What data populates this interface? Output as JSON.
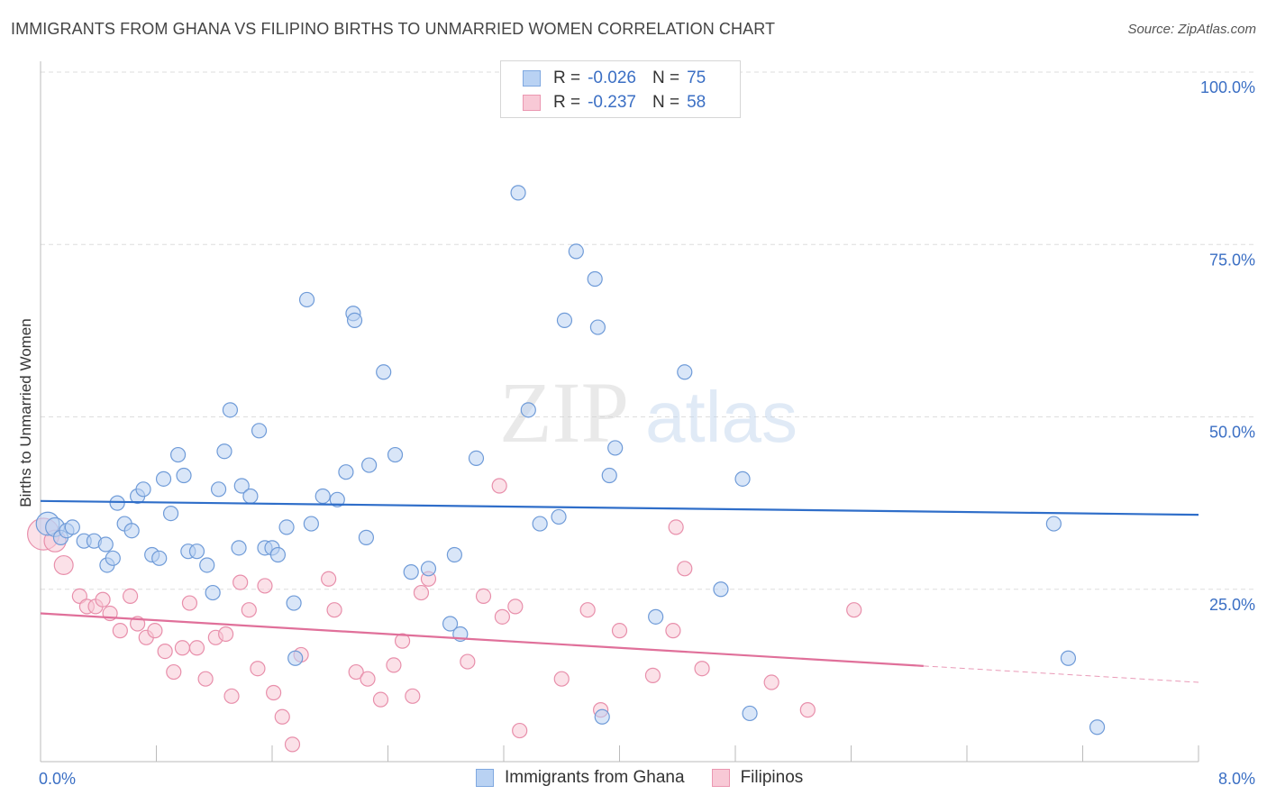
{
  "title": "IMMIGRANTS FROM GHANA VS FILIPINO BIRTHS TO UNMARRIED WOMEN CORRELATION CHART",
  "source": "Source: ZipAtlas.com",
  "watermark": {
    "zip": "ZIP",
    "atlas": "atlas"
  },
  "legend": {
    "r_label": "R =",
    "n_label": "N =",
    "rows": [
      {
        "r": "-0.026",
        "n": "75",
        "fill": "#b9d2f3",
        "stroke": "#7fa8e0"
      },
      {
        "r": "-0.237",
        "n": "58",
        "fill": "#f8c9d6",
        "stroke": "#eb97b1"
      }
    ]
  },
  "bottom_legend": [
    {
      "label": "Immigrants from Ghana",
      "fill": "#b9d2f3",
      "stroke": "#7fa8e0"
    },
    {
      "label": "Filipinos",
      "fill": "#f8c9d6",
      "stroke": "#eb97b1"
    }
  ],
  "colors": {
    "blue_fill": "#b9d2f3",
    "blue_stroke": "#6f9bd8",
    "blue_line": "#2f6ec9",
    "pink_fill": "#f8c9d6",
    "pink_stroke": "#e88fab",
    "pink_line": "#e0709a",
    "tick_label": "#3b6fc4",
    "grid": "#dddddd"
  },
  "chart_data": {
    "type": "scatter",
    "title": "IMMIGRANTS FROM GHANA VS FILIPINO BIRTHS TO UNMARRIED WOMEN CORRELATION CHART",
    "xlabel": "",
    "ylabel": "Births to Unmarried Women",
    "xlim": [
      0,
      8
    ],
    "ylim": [
      0,
      100
    ],
    "x_tick_labels": [
      {
        "value": 0,
        "label": "0.0%"
      },
      {
        "value": 8,
        "label": "8.0%"
      }
    ],
    "y_tick_labels": [
      {
        "value": 25,
        "label": "25.0%"
      },
      {
        "value": 50,
        "label": "50.0%"
      },
      {
        "value": 75,
        "label": "75.0%"
      },
      {
        "value": 100,
        "label": "100.0%"
      }
    ],
    "series": [
      {
        "name": "Immigrants from Ghana",
        "r": -0.026,
        "n": 75,
        "trend": {
          "x0": 0,
          "y0": 37.8,
          "x1": 8,
          "y1": 35.8,
          "solid_until": 8
        },
        "points": [
          [
            0.05,
            34.5,
            1.6
          ],
          [
            0.1,
            34.0,
            1.3
          ],
          [
            0.14,
            32.5,
            1.0
          ],
          [
            0.18,
            33.5,
            1.0
          ],
          [
            0.22,
            34.0,
            1.0
          ],
          [
            0.3,
            32.0,
            1.0
          ],
          [
            0.37,
            32.0,
            1.0
          ],
          [
            0.45,
            31.5,
            1.0
          ],
          [
            0.46,
            28.5,
            1.0
          ],
          [
            0.5,
            29.5,
            1.0
          ],
          [
            0.53,
            37.5,
            1.0
          ],
          [
            0.58,
            34.5,
            1.0
          ],
          [
            0.63,
            33.5,
            1.0
          ],
          [
            0.67,
            38.5,
            1.0
          ],
          [
            0.71,
            39.5,
            1.0
          ],
          [
            0.77,
            30.0,
            1.0
          ],
          [
            0.82,
            29.5,
            1.0
          ],
          [
            0.85,
            41.0,
            1.0
          ],
          [
            0.9,
            36.0,
            1.0
          ],
          [
            0.95,
            44.5,
            1.0
          ],
          [
            0.99,
            41.5,
            1.0
          ],
          [
            1.02,
            30.5,
            1.0
          ],
          [
            1.08,
            30.5,
            1.0
          ],
          [
            1.15,
            28.5,
            1.0
          ],
          [
            1.19,
            24.5,
            1.0
          ],
          [
            1.23,
            39.5,
            1.0
          ],
          [
            1.27,
            45.0,
            1.0
          ],
          [
            1.31,
            51.0,
            1.0
          ],
          [
            1.37,
            31.0,
            1.0
          ],
          [
            1.39,
            40.0,
            1.0
          ],
          [
            1.45,
            38.5,
            1.0
          ],
          [
            1.51,
            48.0,
            1.0
          ],
          [
            1.55,
            31.0,
            1.0
          ],
          [
            1.6,
            31.0,
            1.0
          ],
          [
            1.64,
            30.0,
            1.0
          ],
          [
            1.7,
            34.0,
            1.0
          ],
          [
            1.75,
            23.0,
            1.0
          ],
          [
            1.76,
            15.0,
            1.0
          ],
          [
            1.84,
            67.0,
            1.0
          ],
          [
            1.87,
            34.5,
            1.0
          ],
          [
            1.95,
            38.5,
            1.0
          ],
          [
            2.05,
            38.0,
            1.0
          ],
          [
            2.11,
            42.0,
            1.0
          ],
          [
            2.16,
            65.0,
            1.0
          ],
          [
            2.17,
            64.0,
            1.0
          ],
          [
            2.25,
            32.5,
            1.0
          ],
          [
            2.27,
            43.0,
            1.0
          ],
          [
            2.37,
            56.5,
            1.0
          ],
          [
            2.45,
            44.5,
            1.0
          ],
          [
            2.56,
            27.5,
            1.0
          ],
          [
            2.68,
            28.0,
            1.0
          ],
          [
            2.83,
            20.0,
            1.0
          ],
          [
            2.86,
            30.0,
            1.0
          ],
          [
            2.9,
            18.5,
            1.0
          ],
          [
            3.01,
            44.0,
            1.0
          ],
          [
            3.3,
            82.5,
            1.0
          ],
          [
            3.37,
            51.0,
            1.0
          ],
          [
            3.45,
            34.5,
            1.0
          ],
          [
            3.58,
            35.5,
            1.0
          ],
          [
            3.62,
            64.0,
            1.0
          ],
          [
            3.7,
            74.0,
            1.0
          ],
          [
            3.83,
            70.0,
            1.0
          ],
          [
            3.85,
            63.0,
            1.0
          ],
          [
            3.88,
            6.5,
            1.0
          ],
          [
            3.93,
            41.5,
            1.0
          ],
          [
            3.97,
            45.5,
            1.0
          ],
          [
            4.25,
            21.0,
            1.0
          ],
          [
            4.45,
            56.5,
            1.0
          ],
          [
            4.7,
            25.0,
            1.0
          ],
          [
            4.85,
            41.0,
            1.0
          ],
          [
            4.9,
            7.0,
            1.0
          ],
          [
            7.0,
            34.5,
            1.0
          ],
          [
            7.1,
            15.0,
            1.0
          ],
          [
            7.3,
            5.0,
            1.0
          ]
        ]
      },
      {
        "name": "Filipinos",
        "r": -0.237,
        "n": 58,
        "trend": {
          "x0": 0,
          "y0": 21.5,
          "x1": 8,
          "y1": 11.5,
          "solid_until": 6.1
        },
        "points": [
          [
            0.02,
            33.0,
            2.2
          ],
          [
            0.1,
            32.0,
            1.5
          ],
          [
            0.16,
            28.5,
            1.3
          ],
          [
            0.27,
            24.0,
            1.0
          ],
          [
            0.32,
            22.5,
            1.0
          ],
          [
            0.38,
            22.5,
            1.0
          ],
          [
            0.43,
            23.5,
            1.0
          ],
          [
            0.48,
            21.5,
            1.0
          ],
          [
            0.55,
            19.0,
            1.0
          ],
          [
            0.62,
            24.0,
            1.0
          ],
          [
            0.67,
            20.0,
            1.0
          ],
          [
            0.73,
            18.0,
            1.0
          ],
          [
            0.79,
            19.0,
            1.0
          ],
          [
            0.86,
            16.0,
            1.0
          ],
          [
            0.92,
            13.0,
            1.0
          ],
          [
            0.98,
            16.5,
            1.0
          ],
          [
            1.03,
            23.0,
            1.0
          ],
          [
            1.08,
            16.5,
            1.0
          ],
          [
            1.14,
            12.0,
            1.0
          ],
          [
            1.21,
            18.0,
            1.0
          ],
          [
            1.28,
            18.5,
            1.0
          ],
          [
            1.32,
            9.5,
            1.0
          ],
          [
            1.38,
            26.0,
            1.0
          ],
          [
            1.44,
            22.0,
            1.0
          ],
          [
            1.5,
            13.5,
            1.0
          ],
          [
            1.55,
            25.5,
            1.0
          ],
          [
            1.61,
            10.0,
            1.0
          ],
          [
            1.67,
            6.5,
            1.0
          ],
          [
            1.74,
            2.5,
            1.0
          ],
          [
            1.8,
            15.5,
            1.0
          ],
          [
            1.99,
            26.5,
            1.0
          ],
          [
            2.03,
            22.0,
            1.0
          ],
          [
            2.18,
            13.0,
            1.0
          ],
          [
            2.26,
            12.0,
            1.0
          ],
          [
            2.35,
            9.0,
            1.0
          ],
          [
            2.44,
            14.0,
            1.0
          ],
          [
            2.5,
            17.5,
            1.0
          ],
          [
            2.57,
            9.5,
            1.0
          ],
          [
            2.63,
            24.5,
            1.0
          ],
          [
            2.68,
            26.5,
            1.0
          ],
          [
            2.95,
            14.5,
            1.0
          ],
          [
            3.06,
            24.0,
            1.0
          ],
          [
            3.17,
            40.0,
            1.0
          ],
          [
            3.19,
            21.0,
            1.0
          ],
          [
            3.28,
            22.5,
            1.0
          ],
          [
            3.31,
            4.5,
            1.0
          ],
          [
            3.6,
            12.0,
            1.0
          ],
          [
            3.78,
            22.0,
            1.0
          ],
          [
            3.87,
            7.5,
            1.0
          ],
          [
            4.0,
            19.0,
            1.0
          ],
          [
            4.23,
            12.5,
            1.0
          ],
          [
            4.37,
            19.0,
            1.0
          ],
          [
            4.39,
            34.0,
            1.0
          ],
          [
            4.45,
            28.0,
            1.0
          ],
          [
            4.57,
            13.5,
            1.0
          ],
          [
            5.05,
            11.5,
            1.0
          ],
          [
            5.3,
            7.5,
            1.0
          ],
          [
            5.62,
            22.0,
            1.0
          ]
        ]
      }
    ]
  }
}
